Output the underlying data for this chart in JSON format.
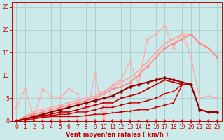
{
  "background_color": "#cceaea",
  "grid_color": "#aacccc",
  "xlabel": "Vent moyen/en rafales ( km/h )",
  "xlabel_color": "#cc0000",
  "tick_color": "#cc0000",
  "xlim": [
    -0.5,
    23.5
  ],
  "ylim": [
    0,
    26
  ],
  "yticks": [
    0,
    5,
    10,
    15,
    20,
    25
  ],
  "xticks": [
    0,
    1,
    2,
    3,
    4,
    5,
    6,
    7,
    8,
    9,
    10,
    11,
    12,
    13,
    14,
    15,
    16,
    17,
    18,
    19,
    20,
    21,
    22,
    23
  ],
  "lines": [
    {
      "x": [
        0,
        1,
        2,
        3,
        4,
        5,
        6,
        7,
        8,
        9,
        10,
        11,
        12,
        13,
        14,
        15,
        16,
        17,
        18,
        19,
        20,
        21,
        22,
        23
      ],
      "y": [
        3,
        7,
        1,
        7,
        5.5,
        5,
        7,
        6,
        0.5,
        10.5,
        0.5,
        8,
        9,
        13,
        8,
        18,
        19,
        21,
        16,
        19.5,
        14,
        5,
        5.5,
        5
      ],
      "color": "#ffaaaa",
      "lw": 1.0,
      "marker": "D",
      "ms": 2.0,
      "zorder": 2
    },
    {
      "x": [
        0,
        1,
        2,
        3,
        4,
        5,
        6,
        7,
        8,
        9,
        10,
        11,
        12,
        13,
        14,
        15,
        16,
        17,
        18,
        19,
        20,
        21,
        22,
        23
      ],
      "y": [
        0,
        1,
        2,
        2.5,
        3,
        3.5,
        4,
        4.5,
        5,
        5.5,
        6.5,
        7.5,
        8.5,
        9.5,
        11,
        13,
        15,
        17,
        18,
        19,
        19,
        17,
        16,
        14
      ],
      "color": "#ffaaaa",
      "lw": 1.5,
      "marker": null,
      "ms": 0,
      "zorder": 3
    },
    {
      "x": [
        0,
        1,
        2,
        3,
        4,
        5,
        6,
        7,
        8,
        9,
        10,
        11,
        12,
        13,
        14,
        15,
        16,
        17,
        18,
        19,
        20,
        21,
        22,
        23
      ],
      "y": [
        0,
        1,
        1.5,
        2,
        2.5,
        3,
        3.5,
        4,
        4.5,
        5,
        6,
        7,
        7.5,
        8.5,
        10,
        12,
        14,
        16,
        17,
        18,
        19,
        17,
        16,
        14
      ],
      "color": "#ff8888",
      "lw": 1.2,
      "marker": "D",
      "ms": 2.0,
      "zorder": 4
    },
    {
      "x": [
        0,
        1,
        2,
        3,
        4,
        5,
        6,
        7,
        8,
        9,
        10,
        11,
        12,
        13,
        14,
        15,
        16,
        17,
        18,
        19,
        20,
        21,
        22,
        23
      ],
      "y": [
        0,
        0.3,
        0.5,
        0.8,
        1,
        1,
        1,
        1,
        1.2,
        1.5,
        1.5,
        1.8,
        2,
        2.2,
        2.5,
        2.5,
        3,
        3.5,
        4,
        8,
        8,
        2.5,
        2,
        2
      ],
      "color": "#cc0000",
      "lw": 1.0,
      "marker": "s",
      "ms": 2.0,
      "zorder": 6
    },
    {
      "x": [
        0,
        1,
        2,
        3,
        4,
        5,
        6,
        7,
        8,
        9,
        10,
        11,
        12,
        13,
        14,
        15,
        16,
        17,
        18,
        19,
        20,
        21,
        22,
        23
      ],
      "y": [
        0,
        0.5,
        0.8,
        1,
        1.2,
        1.5,
        1.5,
        2,
        2,
        2.5,
        3,
        3,
        3.5,
        4,
        4,
        4.5,
        5,
        6,
        6.5,
        8,
        8,
        2.5,
        2,
        2
      ],
      "color": "#cc0000",
      "lw": 1.0,
      "marker": "s",
      "ms": 2.0,
      "zorder": 6
    },
    {
      "x": [
        0,
        1,
        2,
        3,
        4,
        5,
        6,
        7,
        8,
        9,
        10,
        11,
        12,
        13,
        14,
        15,
        16,
        17,
        18,
        19,
        20,
        21,
        22,
        23
      ],
      "y": [
        0,
        0.5,
        1,
        1.2,
        1.5,
        2,
        2,
        2.5,
        3,
        3.5,
        4,
        4,
        5,
        5.5,
        6,
        7,
        8,
        9,
        8.5,
        8,
        8,
        2.5,
        2,
        2
      ],
      "color": "#cc0000",
      "lw": 1.2,
      "marker": "s",
      "ms": 2.0,
      "zorder": 6
    },
    {
      "x": [
        0,
        1,
        2,
        3,
        4,
        5,
        6,
        7,
        8,
        9,
        10,
        11,
        12,
        13,
        14,
        15,
        16,
        17,
        18,
        19,
        20,
        21,
        22,
        23
      ],
      "y": [
        0,
        0.5,
        1,
        1.5,
        2,
        2.5,
        3,
        3.5,
        4,
        4.5,
        5,
        5.5,
        6.5,
        7.5,
        8,
        8.5,
        9,
        9.5,
        9,
        8.5,
        8,
        2.5,
        2,
        2
      ],
      "color": "#990000",
      "lw": 1.5,
      "marker": "D",
      "ms": 2.5,
      "zorder": 7
    }
  ]
}
